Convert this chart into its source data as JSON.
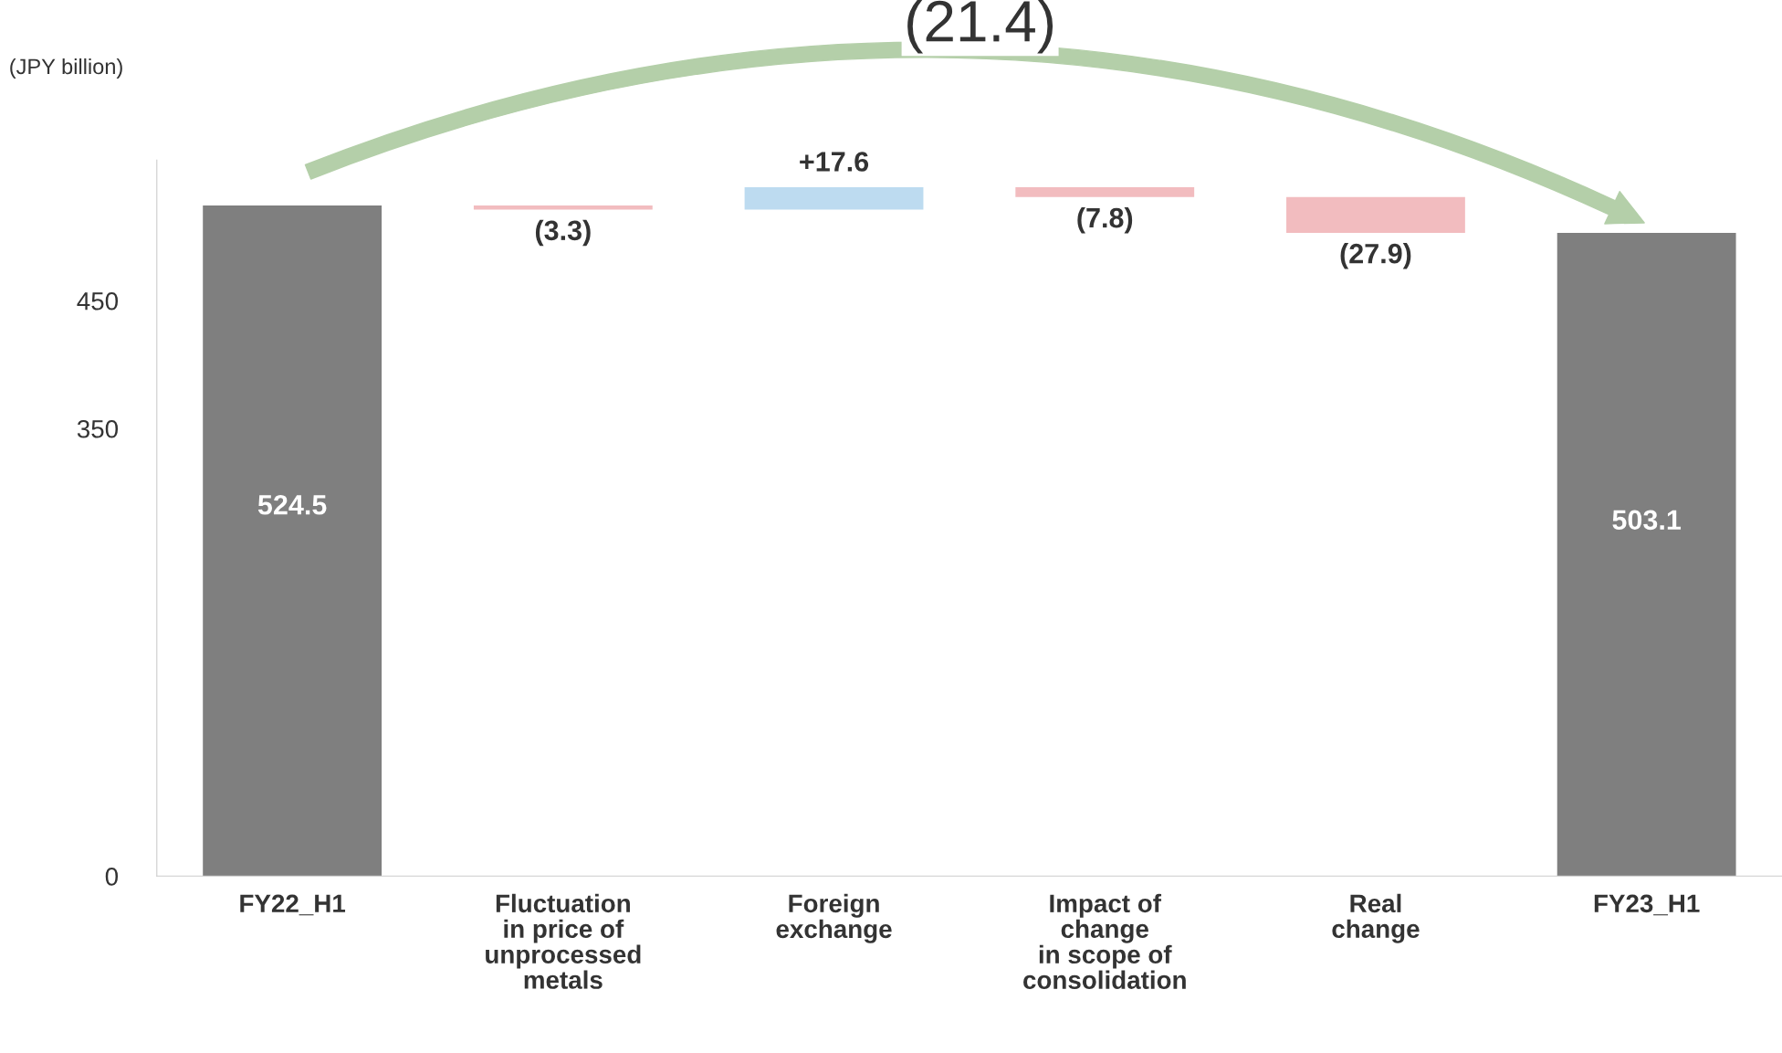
{
  "chart_data": {
    "type": "bar",
    "categories": [
      "FY22_H1",
      "Fluctuation\nin price of\nunprocessed\nmetals",
      "Foreign\nexchange",
      "Impact of\nchange\nin scope of\nconsolidation",
      "Real\nchange",
      "FY23_H1"
    ],
    "base": [
      0,
      524.5,
      521.2,
      538.8,
      531.0,
      0
    ],
    "values": [
      524.5,
      -3.3,
      17.6,
      -7.8,
      -27.9,
      503.1
    ],
    "colors": [
      "#7f7f7f",
      "#f2bcbf",
      "#bddbf0",
      "#f2bcbf",
      "#f2bcbf",
      "#7f7f7f"
    ],
    "value_labels": [
      "524.5",
      "(3.3)",
      "+17.6",
      "(7.8)",
      "(27.9)",
      "503.1"
    ],
    "ylim": [
      0,
      560
    ],
    "yticks": [
      0,
      350,
      450
    ],
    "grid": false,
    "legend": false,
    "annotations": [
      "(21.4)",
      "(JPY billion)"
    ]
  }
}
